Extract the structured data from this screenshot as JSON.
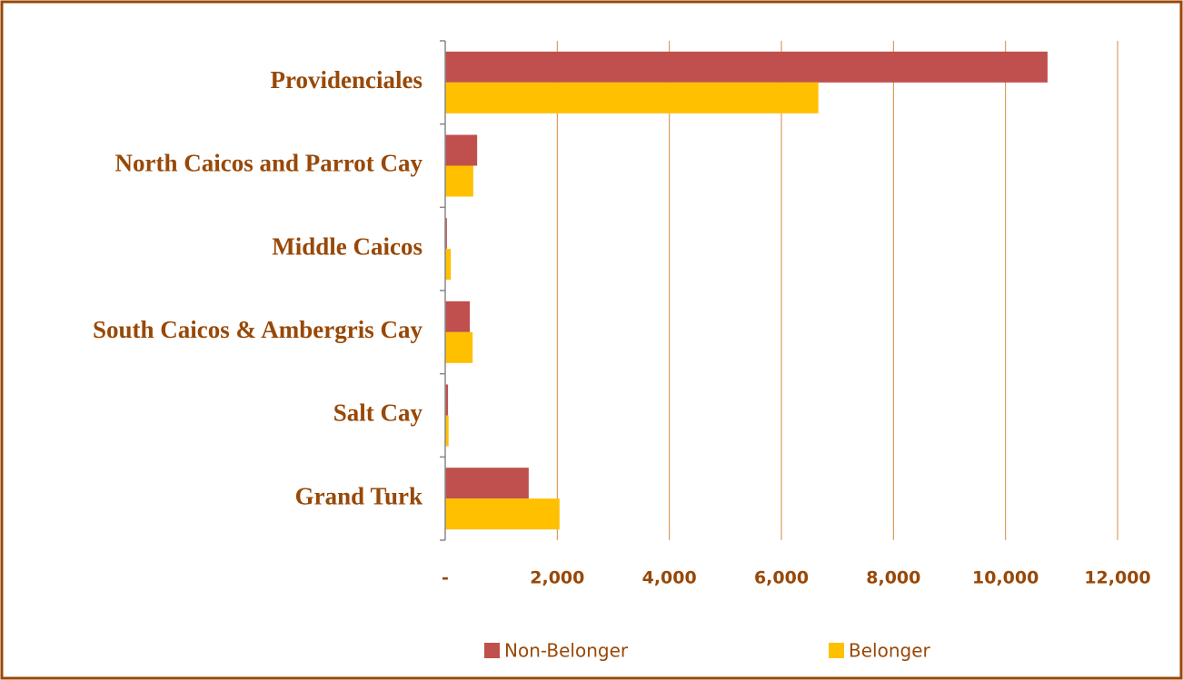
{
  "chart_data": {
    "type": "hbar",
    "categories": [
      "Providenciales",
      "North Caicos and Parrot Cay",
      "Middle Caicos",
      "South Caicos & Ambergris Cay",
      "Salt Cay",
      "Grand Turk"
    ],
    "series": [
      {
        "name": "Non-Belonger",
        "color": "#c0504d",
        "values": [
          10750,
          570,
          30,
          440,
          50,
          1490
        ]
      },
      {
        "name": "Belonger",
        "color": "#ffc000",
        "values": [
          6660,
          500,
          100,
          490,
          60,
          2040
        ]
      }
    ],
    "xlim": [
      0,
      12000
    ],
    "xticks": [
      {
        "value": 0,
        "label": "-"
      },
      {
        "value": 2000,
        "label": "2,000"
      },
      {
        "value": 4000,
        "label": "4,000"
      },
      {
        "value": 6000,
        "label": "6,000"
      },
      {
        "value": 8000,
        "label": "8,000"
      },
      {
        "value": 10000,
        "label": "10,000"
      },
      {
        "value": 12000,
        "label": "12,000"
      }
    ],
    "grid": true,
    "legend": "bottom"
  }
}
